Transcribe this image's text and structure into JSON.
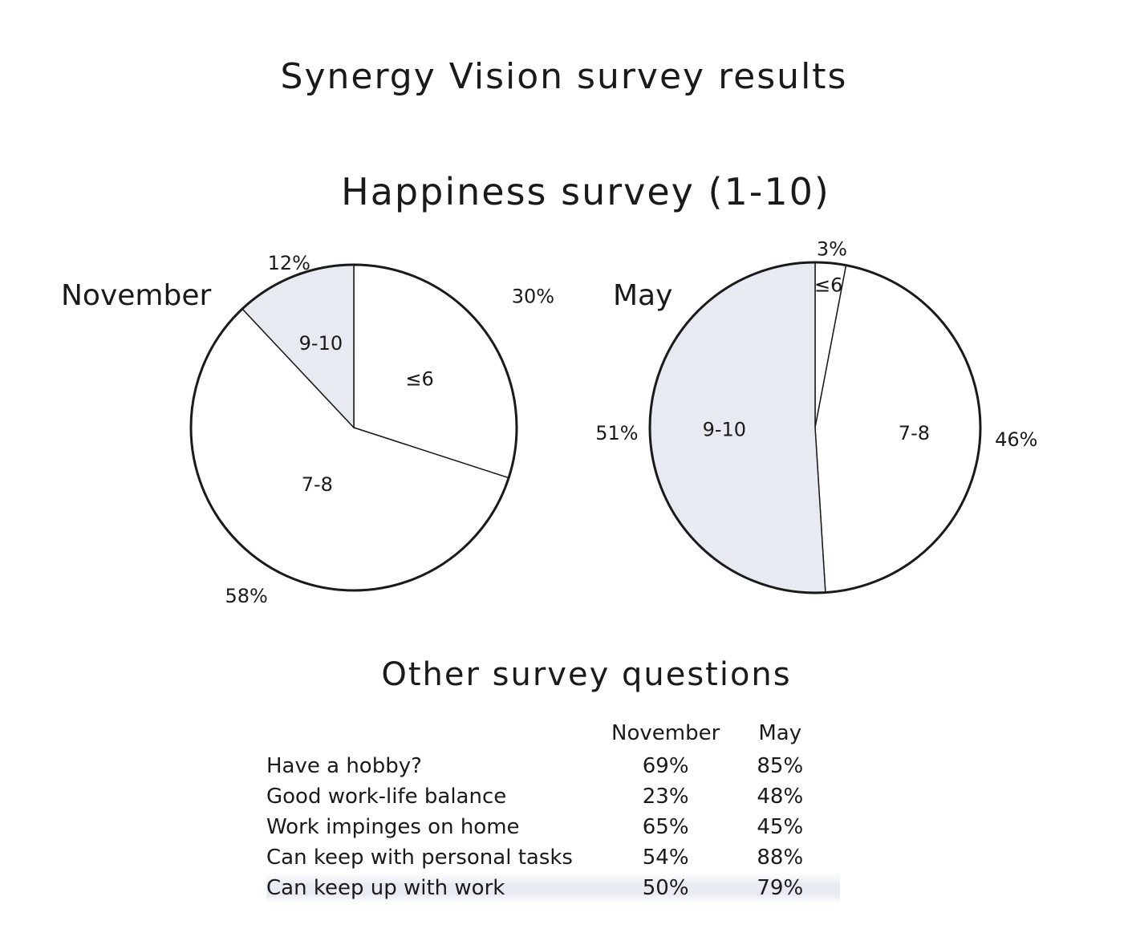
{
  "title": "Synergy Vision survey results",
  "subtitle": "Happiness survey (1-10)",
  "colors": {
    "shade": "#e8eaf2",
    "outline": "#1a1a1a"
  },
  "chart_data": [
    {
      "type": "pie",
      "title": "November",
      "slices": [
        {
          "label": "≤6",
          "value": 30,
          "pct_label": "30%",
          "fill": "#ffffff"
        },
        {
          "label": "7-8",
          "value": 58,
          "pct_label": "58%",
          "fill": "#ffffff"
        },
        {
          "label": "9-10",
          "value": 12,
          "pct_label": "12%",
          "fill": "#e8eaf2"
        }
      ]
    },
    {
      "type": "pie",
      "title": "May",
      "slices": [
        {
          "label": "≤6",
          "value": 3,
          "pct_label": "3%",
          "fill": "#ffffff"
        },
        {
          "label": "7-8",
          "value": 46,
          "pct_label": "46%",
          "fill": "#ffffff"
        },
        {
          "label": "9-10",
          "value": 51,
          "pct_label": "51%",
          "fill": "#e8eaf2"
        }
      ]
    },
    {
      "type": "table",
      "title": "Other survey questions",
      "columns": [
        "",
        "November",
        "May"
      ],
      "rows": [
        [
          "Have a hobby?",
          "69%",
          "85%"
        ],
        [
          "Good work-life balance",
          "23%",
          "48%"
        ],
        [
          "Work impinges on home",
          "65%",
          "45%"
        ],
        [
          "Can keep with personal tasks",
          "54%",
          "88%"
        ],
        [
          "Can keep up with work",
          "50%",
          "79%"
        ]
      ]
    }
  ]
}
